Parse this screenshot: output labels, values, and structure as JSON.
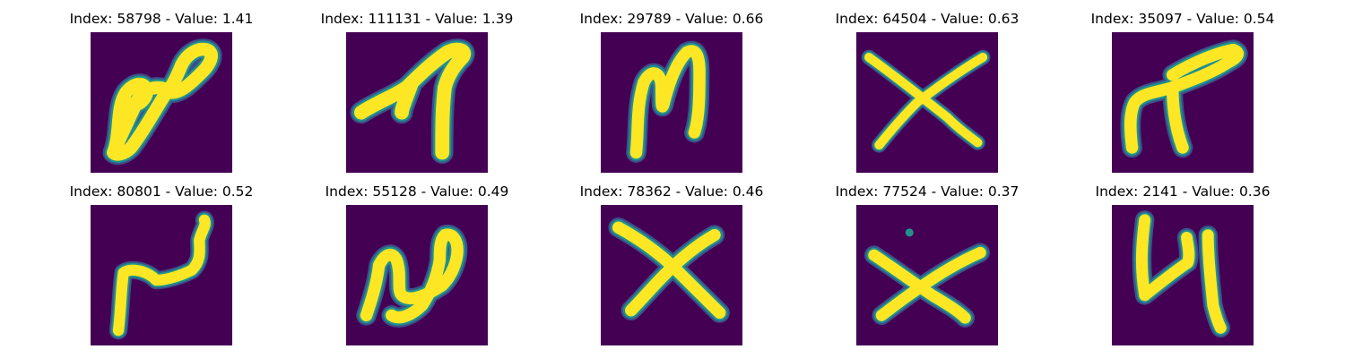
{
  "colors": {
    "background": "#440154",
    "stroke_core": "#fde725",
    "stroke_mid": "#21918c",
    "stroke_edge": "#3b528b"
  },
  "panels": [
    {
      "index": "58798",
      "value": "1.41",
      "title": "Index: 58798 - Value: 1.41"
    },
    {
      "index": "111131",
      "value": "1.39",
      "title": "Index: 111131 - Value: 1.39"
    },
    {
      "index": "29789",
      "value": "0.66",
      "title": "Index: 29789 - Value: 0.66"
    },
    {
      "index": "64504",
      "value": "0.63",
      "title": "Index: 64504 - Value: 0.63"
    },
    {
      "index": "35097",
      "value": "0.54",
      "title": "Index: 35097 - Value: 0.54"
    },
    {
      "index": "80801",
      "value": "0.52",
      "title": "Index: 80801 - Value: 0.52"
    },
    {
      "index": "55128",
      "value": "0.49",
      "title": "Index: 55128 - Value: 0.49"
    },
    {
      "index": "78362",
      "value": "0.46",
      "title": "Index: 78362 - Value: 0.46"
    },
    {
      "index": "77524",
      "value": "0.37",
      "title": "Index: 77524 - Value: 0.37"
    },
    {
      "index": "2141",
      "value": "0.36",
      "title": "Index: 2141 - Value: 0.36"
    }
  ]
}
